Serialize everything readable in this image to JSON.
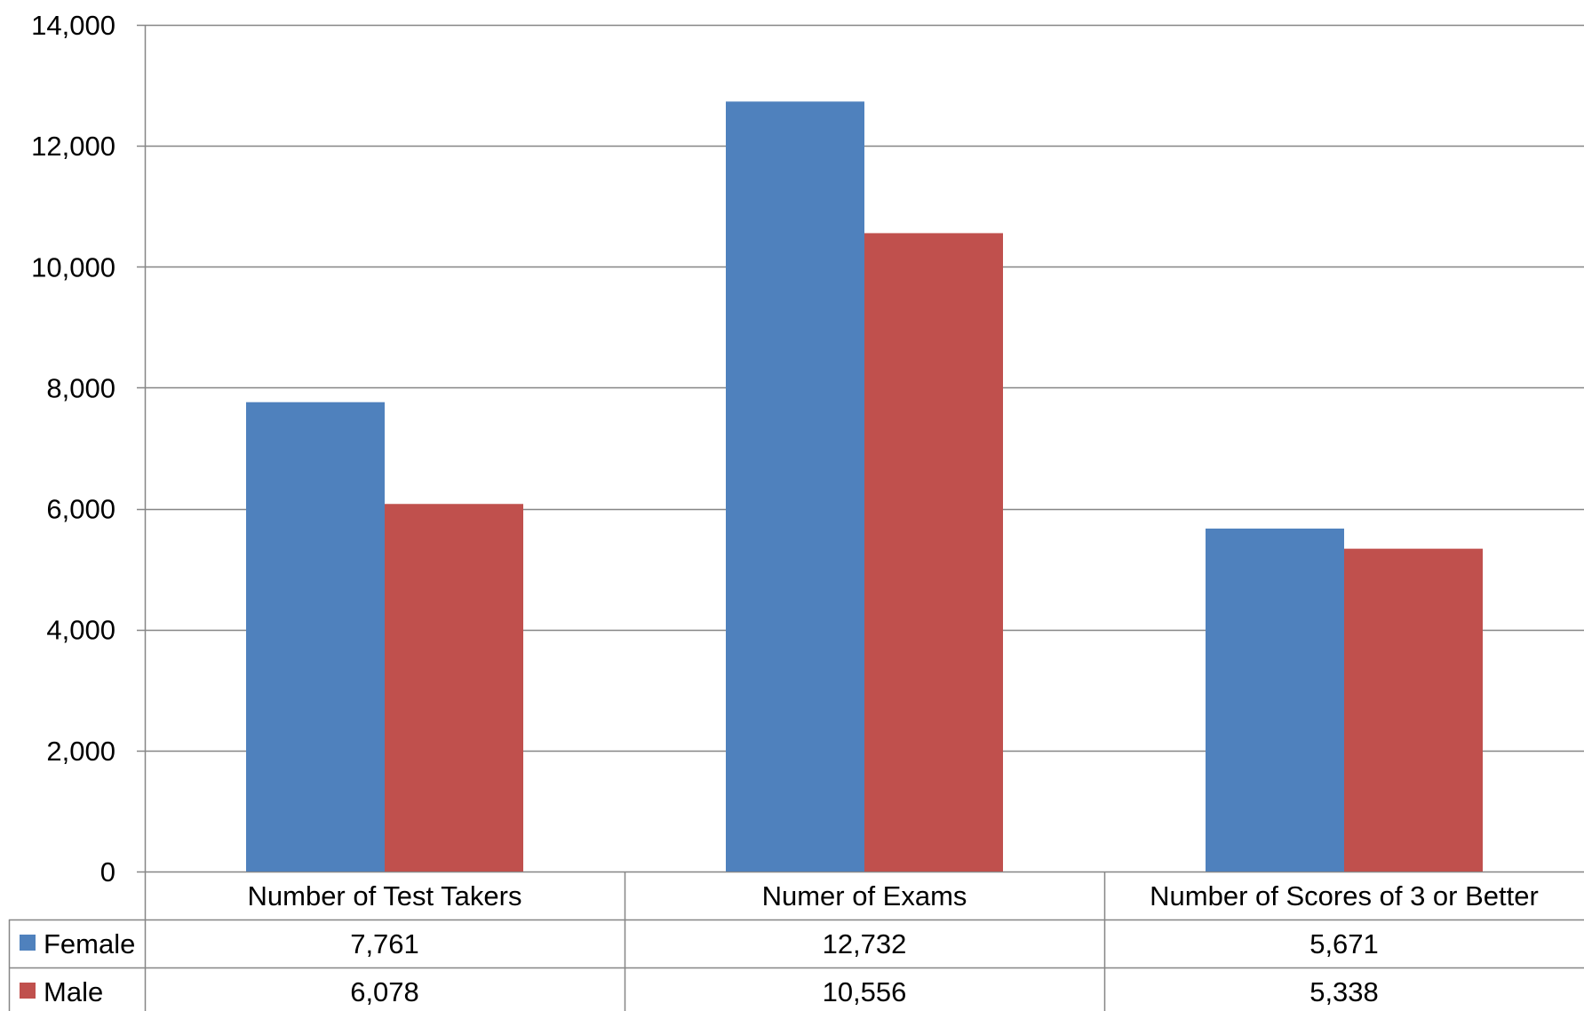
{
  "chart_data": {
    "type": "bar",
    "title": "",
    "xlabel": "",
    "ylabel": "",
    "ylim": [
      0,
      14000
    ],
    "yticks": [
      0,
      2000,
      4000,
      6000,
      8000,
      10000,
      12000,
      14000
    ],
    "ytick_labels": [
      "0",
      "2,000",
      "4,000",
      "6,000",
      "8,000",
      "10,000",
      "12,000",
      "14,000"
    ],
    "grid": true,
    "legend": "data-table",
    "categories": [
      "Number of Test Takers",
      "Numer of Exams",
      "Number of Scores of 3 or Better"
    ],
    "series": [
      {
        "name": "Female",
        "color": "#4f81bd",
        "values": [
          7761,
          12732,
          5671
        ],
        "value_labels": [
          "7,761",
          "12,732",
          "5,671"
        ]
      },
      {
        "name": "Male",
        "color": "#c0504d",
        "values": [
          6078,
          10556,
          5338
        ],
        "value_labels": [
          "6,078",
          "10,556",
          "5,338"
        ]
      }
    ]
  }
}
